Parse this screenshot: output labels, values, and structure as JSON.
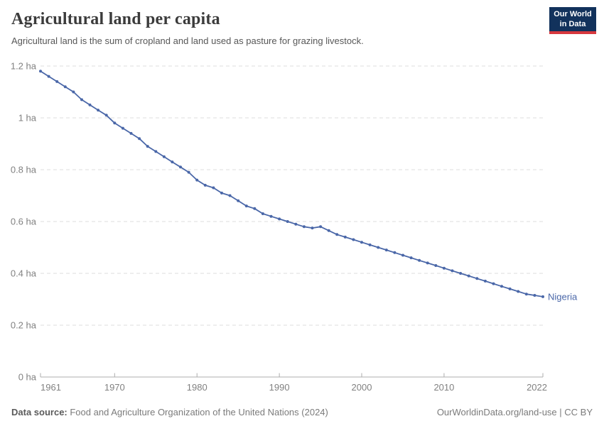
{
  "header": {
    "title": "Agricultural land per capita",
    "subtitle": "Agricultural land is the sum of cropland and land used as pasture for grazing livestock."
  },
  "logo": {
    "line1": "Our World",
    "line2": "in Data",
    "bg_color": "#12325c",
    "accent_color": "#d7383e"
  },
  "chart_data": {
    "type": "line",
    "title": "Agricultural land per capita",
    "unit": "ha",
    "xlabel": "",
    "ylabel": "",
    "xlim": [
      1961,
      2022
    ],
    "ylim": [
      0,
      1.2
    ],
    "grid": "dashed-horizontal",
    "legend": "end-of-line-label",
    "x": [
      1961,
      1962,
      1963,
      1964,
      1965,
      1966,
      1967,
      1968,
      1969,
      1970,
      1971,
      1972,
      1973,
      1974,
      1975,
      1976,
      1977,
      1978,
      1979,
      1980,
      1981,
      1982,
      1983,
      1984,
      1985,
      1986,
      1987,
      1988,
      1989,
      1990,
      1991,
      1992,
      1993,
      1994,
      1995,
      1996,
      1997,
      1998,
      1999,
      2000,
      2001,
      2002,
      2003,
      2004,
      2005,
      2006,
      2007,
      2008,
      2009,
      2010,
      2011,
      2012,
      2013,
      2014,
      2015,
      2016,
      2017,
      2018,
      2019,
      2020,
      2021,
      2022
    ],
    "series": [
      {
        "name": "Nigeria",
        "color": "#4a67a8",
        "values": [
          1.18,
          1.16,
          1.14,
          1.12,
          1.1,
          1.07,
          1.05,
          1.03,
          1.01,
          0.98,
          0.96,
          0.94,
          0.92,
          0.89,
          0.87,
          0.85,
          0.83,
          0.81,
          0.79,
          0.76,
          0.74,
          0.73,
          0.71,
          0.7,
          0.68,
          0.66,
          0.65,
          0.63,
          0.62,
          0.61,
          0.6,
          0.59,
          0.58,
          0.575,
          0.58,
          0.565,
          0.55,
          0.54,
          0.53,
          0.52,
          0.51,
          0.5,
          0.49,
          0.48,
          0.47,
          0.46,
          0.45,
          0.44,
          0.43,
          0.42,
          0.41,
          0.4,
          0.39,
          0.38,
          0.37,
          0.36,
          0.35,
          0.34,
          0.33,
          0.32,
          0.315,
          0.31
        ]
      }
    ],
    "y_ticks": [
      {
        "value": 1.2,
        "label": "1.2 ha"
      },
      {
        "value": 1.0,
        "label": "1 ha"
      },
      {
        "value": 0.8,
        "label": "0.8 ha"
      },
      {
        "value": 0.6,
        "label": "0.6 ha"
      },
      {
        "value": 0.4,
        "label": "0.4 ha"
      },
      {
        "value": 0.2,
        "label": "0.2 ha"
      },
      {
        "value": 0,
        "label": "0 ha"
      }
    ],
    "x_ticks": [
      {
        "value": 1961,
        "label": "1961"
      },
      {
        "value": 1970,
        "label": "1970"
      },
      {
        "value": 1980,
        "label": "1980"
      },
      {
        "value": 1990,
        "label": "1990"
      },
      {
        "value": 2000,
        "label": "2000"
      },
      {
        "value": 2010,
        "label": "2010"
      },
      {
        "value": 2022,
        "label": "2022"
      }
    ],
    "colors": {
      "grid": "#dedede",
      "axis": "#adadad",
      "tick_text": "#818181",
      "line": "#4a67a8"
    }
  },
  "footer": {
    "source_label": "Data source:",
    "source_text": " Food and Agriculture Organization of the United Nations (2024)",
    "link_text": "OurWorldinData.org/land-use",
    "license_text": " | CC BY"
  }
}
